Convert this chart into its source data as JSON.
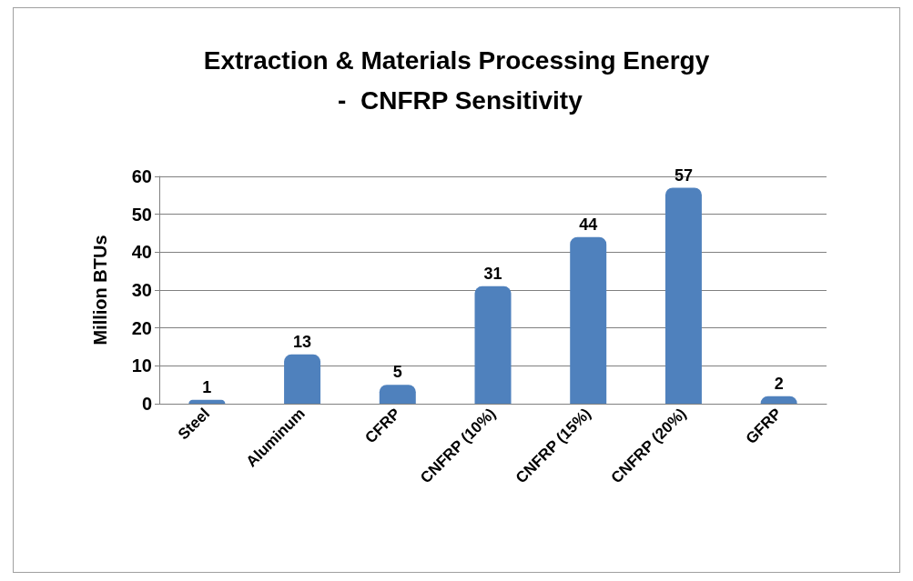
{
  "chart_data": {
    "type": "bar",
    "title": "Extraction & Materials Processing Energy\n -  CNFRP Sensitivity",
    "ylabel": "Million BTUs",
    "categories": [
      "Steel",
      "Aluminum",
      "CFRP",
      "CNFRP (10%)",
      "CNFRP (15%)",
      "CNFRP (20%)",
      "GFRP"
    ],
    "values": [
      1,
      13,
      5,
      31,
      44,
      57,
      2
    ],
    "color": "#4f81bd",
    "ylim": [
      0,
      60
    ],
    "yticks": [
      0,
      10,
      20,
      30,
      40,
      50,
      60
    ],
    "grid": true,
    "data_labels": true
  }
}
